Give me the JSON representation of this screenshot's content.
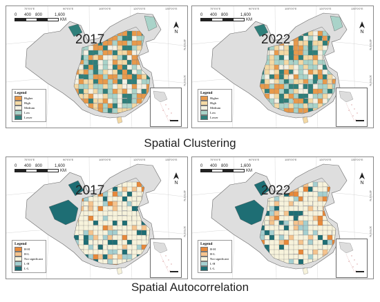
{
  "panels": [
    {
      "year": "2017",
      "legend_title": "Legend",
      "legend_items": [
        "Higher",
        "High",
        "Medium",
        "Low",
        "Lower"
      ],
      "legend_colors": [
        "#e89a4b",
        "#f4d9a4",
        "#f4f1e2",
        "#a9d3c9",
        "#2f7f7a"
      ]
    },
    {
      "year": "2022",
      "legend_title": "Legend",
      "legend_items": [
        "Higher",
        "High",
        "Medium",
        "Low",
        "Lower"
      ],
      "legend_colors": [
        "#e89a4b",
        "#f4d9a4",
        "#f4f1e2",
        "#a9d3c9",
        "#2f7f7a"
      ]
    },
    {
      "year": "2017",
      "legend_title": "Legend",
      "legend_items": [
        "H-H",
        "H-L",
        "Not significant",
        "L-H",
        "L-L"
      ],
      "legend_colors": [
        "#e8893a",
        "#f5c48e",
        "#f7f3dc",
        "#a5cfd0",
        "#1e6e74"
      ]
    },
    {
      "year": "2022",
      "legend_title": "Legend",
      "legend_items": [
        "H-H",
        "H-L",
        "Not significant",
        "L-H",
        "L-L"
      ],
      "legend_colors": [
        "#e8893a",
        "#f5c48e",
        "#f7f3dc",
        "#a5cfd0",
        "#1e6e74"
      ]
    }
  ],
  "scale": {
    "labels": [
      "0",
      "400",
      "800",
      "1,600"
    ],
    "unit": "KM"
  },
  "graticule": {
    "top": [
      "75°0'0\"E",
      "90°0'0\"E",
      "105°0'0\"E",
      "120°0'0\"E",
      "135°0'0\"E"
    ],
    "right": [
      "45°0'0\"N",
      "30°0'0\"N"
    ]
  },
  "north_label": "N",
  "captions": {
    "clustering": "Spatial Clustering",
    "autocorrelation": "Spatial Autocorrelation"
  },
  "colors": {
    "background_region": "#dedede",
    "border": "#888888"
  }
}
